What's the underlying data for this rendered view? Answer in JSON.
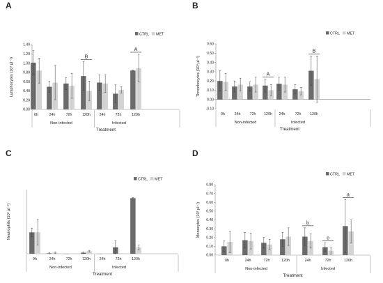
{
  "chart_data": [
    {
      "type": "bar",
      "panel": "A",
      "ylabel": "Lymphocytes (10³ µl⁻¹)",
      "xlabel": "Treatment",
      "yticks": [
        "0.00",
        "0.20",
        "0.40",
        "0.60",
        "0.80",
        "1.00",
        "1.20",
        "1.40"
      ],
      "ylim": [
        0,
        1.4
      ],
      "legend": [
        "CTRL",
        "MET"
      ],
      "legend_position": "top-right",
      "categories": [
        "0h",
        "24h",
        "72h",
        "120h",
        "24h",
        "72h",
        "120h"
      ],
      "groups": [
        {
          "label": "Non-infected",
          "start": 0,
          "end": 3
        },
        {
          "label": "Infected",
          "start": 4,
          "end": 6
        }
      ],
      "series": [
        {
          "name": "CTRL",
          "values": [
            1.01,
            0.49,
            0.56,
            0.72,
            0.58,
            0.34,
            0.84
          ],
          "errors": [
            0.26,
            0.12,
            0.13,
            0.31,
            0.17,
            0.19,
            0.01
          ]
        },
        {
          "name": "MET",
          "values": [
            0.84,
            0.58,
            0.51,
            0.4,
            0.56,
            0.42,
            0.89
          ],
          "errors": [
            0.27,
            0.37,
            0.27,
            0.21,
            0.19,
            0.07,
            0.3
          ]
        }
      ],
      "annotations": [
        {
          "text": "B",
          "category": 3
        },
        {
          "text": "A",
          "category": 6
        }
      ]
    },
    {
      "type": "bar",
      "panel": "B",
      "ylabel": "Thrombocytes (10³ µl⁻¹)",
      "xlabel": "Treatment",
      "yticks": [
        "-0.10",
        "0.00",
        "0.10",
        "0.20",
        "0.30",
        "0.40",
        "0.50",
        "0.60"
      ],
      "ylim": [
        -0.1,
        0.6
      ],
      "legend": [
        "CTRL",
        "MET"
      ],
      "legend_position": "top-right",
      "categories": [
        "0h",
        "24h",
        "72h",
        "120h",
        "24h",
        "72h",
        "120h"
      ],
      "groups": [
        {
          "label": "Non-infected",
          "start": 0,
          "end": 3
        },
        {
          "label": "Infected",
          "start": 4,
          "end": 6
        }
      ],
      "series": [
        {
          "name": "CTRL",
          "values": [
            0.2,
            0.14,
            0.14,
            0.15,
            0.17,
            0.11,
            0.31
          ],
          "errors": [
            0.11,
            0.06,
            0.05,
            0.07,
            0.07,
            0.05,
            0.16
          ]
        },
        {
          "name": "MET",
          "values": [
            0.19,
            0.16,
            0.16,
            0.1,
            0.16,
            0.09,
            0.22
          ],
          "errors": [
            0.09,
            0.07,
            0.08,
            0.06,
            0.08,
            0.04,
            0.25
          ]
        }
      ],
      "annotations": [
        {
          "text": "A",
          "category": 3
        },
        {
          "text": "B",
          "category": 6
        }
      ]
    },
    {
      "type": "bar",
      "panel": "C",
      "ylabel": "Neutrophils (10³ µl⁻¹)",
      "xlabel": "Treatment",
      "yticks": [],
      "ylim": [
        0,
        0.3
      ],
      "legend": [
        "CTRL",
        "MET"
      ],
      "legend_position": "top-right",
      "categories": [
        "0h",
        "24h",
        "72h",
        "120h",
        "24h",
        "72h",
        "120h"
      ],
      "groups": [
        {
          "label": "Non-infected",
          "start": 0,
          "end": 3
        },
        {
          "label": "Infected",
          "start": 4,
          "end": 6
        }
      ],
      "series": [
        {
          "name": "CTRL",
          "values": [
            0.1,
            0.002,
            0.0,
            0.005,
            0.0,
            0.03,
            0.26
          ],
          "errors": [
            0.02,
            0.002,
            0.0,
            0.003,
            0.0,
            0.03,
            0.003
          ]
        },
        {
          "name": "MET",
          "values": [
            0.1,
            0.005,
            0.0,
            0.012,
            0.0,
            0.0,
            0.03
          ],
          "errors": [
            0.06,
            0.003,
            0.0,
            0.004,
            0.0,
            0.0,
            0.01
          ]
        }
      ],
      "annotations": []
    },
    {
      "type": "bar",
      "panel": "D",
      "ylabel": "Monocytes (10³ µl⁻¹)",
      "xlabel": "Treatment",
      "yticks": [
        "0.00",
        "0.10",
        "0.20",
        "0.30",
        "0.40",
        "0.50",
        "0.60",
        "0.70",
        "0.80"
      ],
      "ylim": [
        0,
        0.8
      ],
      "legend": [
        "CTRL",
        "MET"
      ],
      "legend_position": "top-right",
      "categories": [
        "0h",
        "24h",
        "72h",
        "120h",
        "24h",
        "72h",
        "120h"
      ],
      "groups": [
        {
          "label": "Non-infected",
          "start": 0,
          "end": 3
        },
        {
          "label": "Infected",
          "start": 4,
          "end": 6
        }
      ],
      "series": [
        {
          "name": "CTRL",
          "values": [
            0.1,
            0.17,
            0.14,
            0.18,
            0.21,
            0.09,
            0.33
          ],
          "errors": [
            0.06,
            0.09,
            0.06,
            0.08,
            0.1,
            0.05,
            0.3
          ]
        },
        {
          "name": "MET",
          "values": [
            0.15,
            0.16,
            0.12,
            0.21,
            0.16,
            0.05,
            0.27
          ],
          "errors": [
            0.12,
            0.09,
            0.06,
            0.1,
            0.08,
            0.04,
            0.13
          ]
        }
      ],
      "annotations": [
        {
          "text": "b",
          "category": 4
        },
        {
          "text": "c",
          "category": 5
        },
        {
          "text": "a",
          "category": 6
        }
      ]
    }
  ],
  "colors": {
    "ctrl": "#6b6b6b",
    "met": "#d3d3d3",
    "axis": "#8a8a8a",
    "error": "#3a3a3a"
  }
}
